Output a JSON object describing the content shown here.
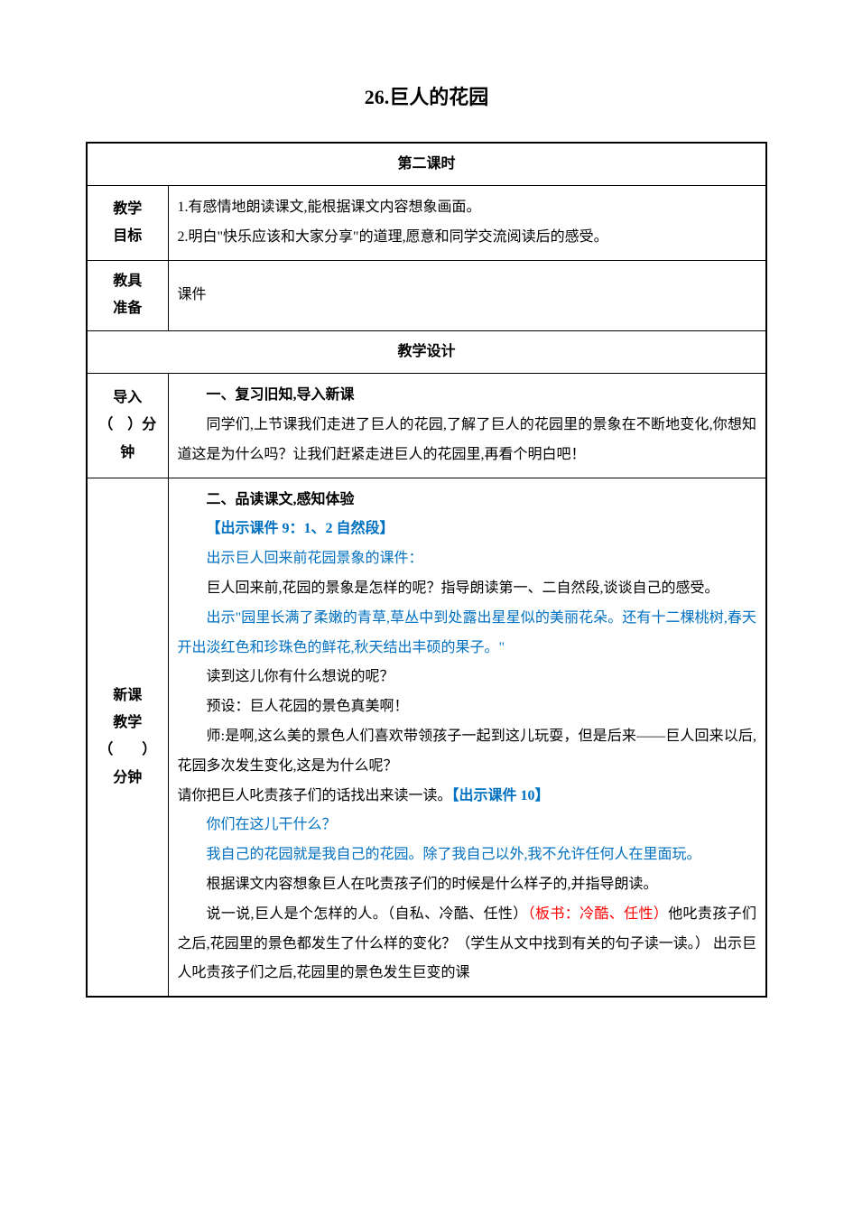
{
  "title": "26.巨人的花园",
  "subtitle": "第二课时",
  "rows": {
    "goals": {
      "label": "教学\n目标",
      "item1": "1.有感情地朗读课文,能根据课文内容想象画面。",
      "item2": "2.明白\"快乐应该和大家分享\"的道理,愿意和同学交流阅读后的感受。"
    },
    "tools": {
      "label": "教具\n准备",
      "value": "课件"
    },
    "design": "教学设计",
    "intro": {
      "label": "导入\n（　）分\n钟",
      "heading": "一、复习旧知,导入新课",
      "p1": "同学们,上节课我们走进了巨人的花园,了解了巨人的花园里的景象在不断地变化,你想知道这是为什么吗？让我们赶紧走进巨人的花园里,再看个明白吧！"
    },
    "main": {
      "label": "新课\n教学\n（　　）\n分钟",
      "heading": "二、品读课文,感知体验",
      "blue1": "【出示课件 9：1、2 自然段】",
      "blue2": "出示巨人回来前花园景象的课件：",
      "p1": "巨人回来前,花园的景象是怎样的呢？指导朗读第一、二自然段,谈谈自己的感受。",
      "blue3": "出示\"园里长满了柔嫩的青草,草丛中到处露出星星似的美丽花朵。还有十二棵桃树,春天开出淡红色和珍珠色的鲜花,秋天结出丰硕的果子。\"",
      "p2": "读到这儿你有什么想说的呢？",
      "p3": "预设：巨人花园的景色真美啊！",
      "p4_part1": "师:是啊,这么美的景色人们喜欢带领孩子一起到这儿玩耍，但是后来——巨人回来以后,花园多次发生变化,这是为什么呢？",
      "p5_part1": "请你把巨人叱责孩子们的话找出来读一读。",
      "p5_blue": "【出示课件 10】",
      "blue4": "你们在这儿干什么？",
      "blue5": "我自己的花园就是我自己的花园。除了我自己以外,我不允许任何人在里面玩。",
      "p6": "根据课文内容想象巨人在叱责孩子们的时候是什么样子的,并指导朗读。",
      "p7_part1": "说一说,巨人是个怎样的人。（自私、冷酷、任性）",
      "p7_red": "（板书：冷酷、任性）",
      "p7_part2": "他叱责孩子们之后,花园里的景色都发生了什么样的变化？（学生从文中找到有关的句子读一读。） 出示巨人叱责孩子们之后,花园里的景色发生巨变的课"
    }
  },
  "colors": {
    "blue": "#0070c0",
    "red": "#ff0000",
    "black": "#000000",
    "background": "#ffffff"
  }
}
